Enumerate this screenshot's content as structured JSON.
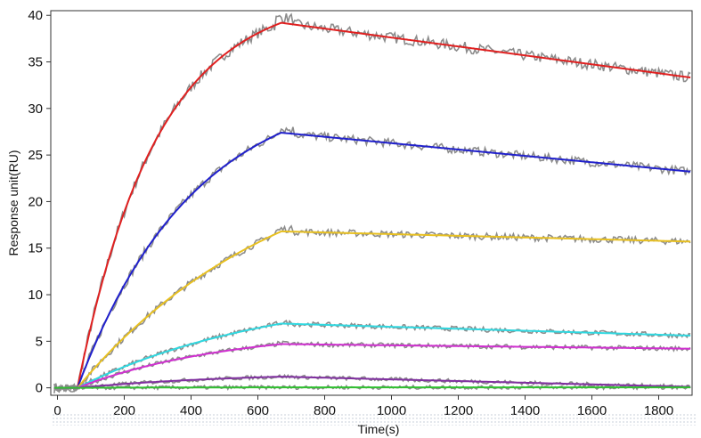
{
  "chart_data": {
    "type": "line",
    "title": "",
    "xlabel": "Time(s)",
    "ylabel": "Response unit(RU)",
    "xlim": [
      -20,
      1900
    ],
    "ylim": [
      -0.8,
      40.5
    ],
    "xticks": [
      0,
      200,
      400,
      600,
      800,
      1000,
      1200,
      1400,
      1600,
      1800
    ],
    "yticks": [
      0,
      5,
      10,
      15,
      20,
      25,
      30,
      35,
      40
    ],
    "grid": false,
    "legend": "none",
    "injection_start_s": 60,
    "injection_end_s": 670,
    "series": [
      {
        "color": "#e02020",
        "baseline": 0.0,
        "peak": 39.2,
        "k_association": 0.0042,
        "end_value": 33.3,
        "measured_color": "#8c8c8c"
      },
      {
        "color": "#2020cc",
        "baseline": 0.0,
        "peak": 27.4,
        "k_association": 0.0029,
        "end_value": 23.2,
        "measured_color": "#8c8c8c"
      },
      {
        "color": "#e8c020",
        "baseline": 0.0,
        "peak": 16.8,
        "k_association": 0.0016,
        "end_value": 15.7,
        "measured_color": "#8c8c8c"
      },
      {
        "color": "#30d8e0",
        "baseline": 0.0,
        "peak": 6.9,
        "k_association": 0.0017,
        "end_value": 5.6,
        "measured_color": "#8c8c8c"
      },
      {
        "color": "#d030d0",
        "baseline": 0.0,
        "peak": 4.7,
        "k_association": 0.0022,
        "end_value": 4.2,
        "measured_color": "#8c8c8c"
      },
      {
        "color": "#8030a0",
        "baseline": 0.0,
        "peak": 1.2,
        "k_association": 0.002,
        "end_value": 0.1,
        "measured_color": "#8c8c8c"
      },
      {
        "color": "#30c030",
        "baseline": 0.0,
        "peak": 0.05,
        "k_association": 0.003,
        "end_value": 0.05,
        "measured_color": "#8c8c8c"
      }
    ]
  }
}
